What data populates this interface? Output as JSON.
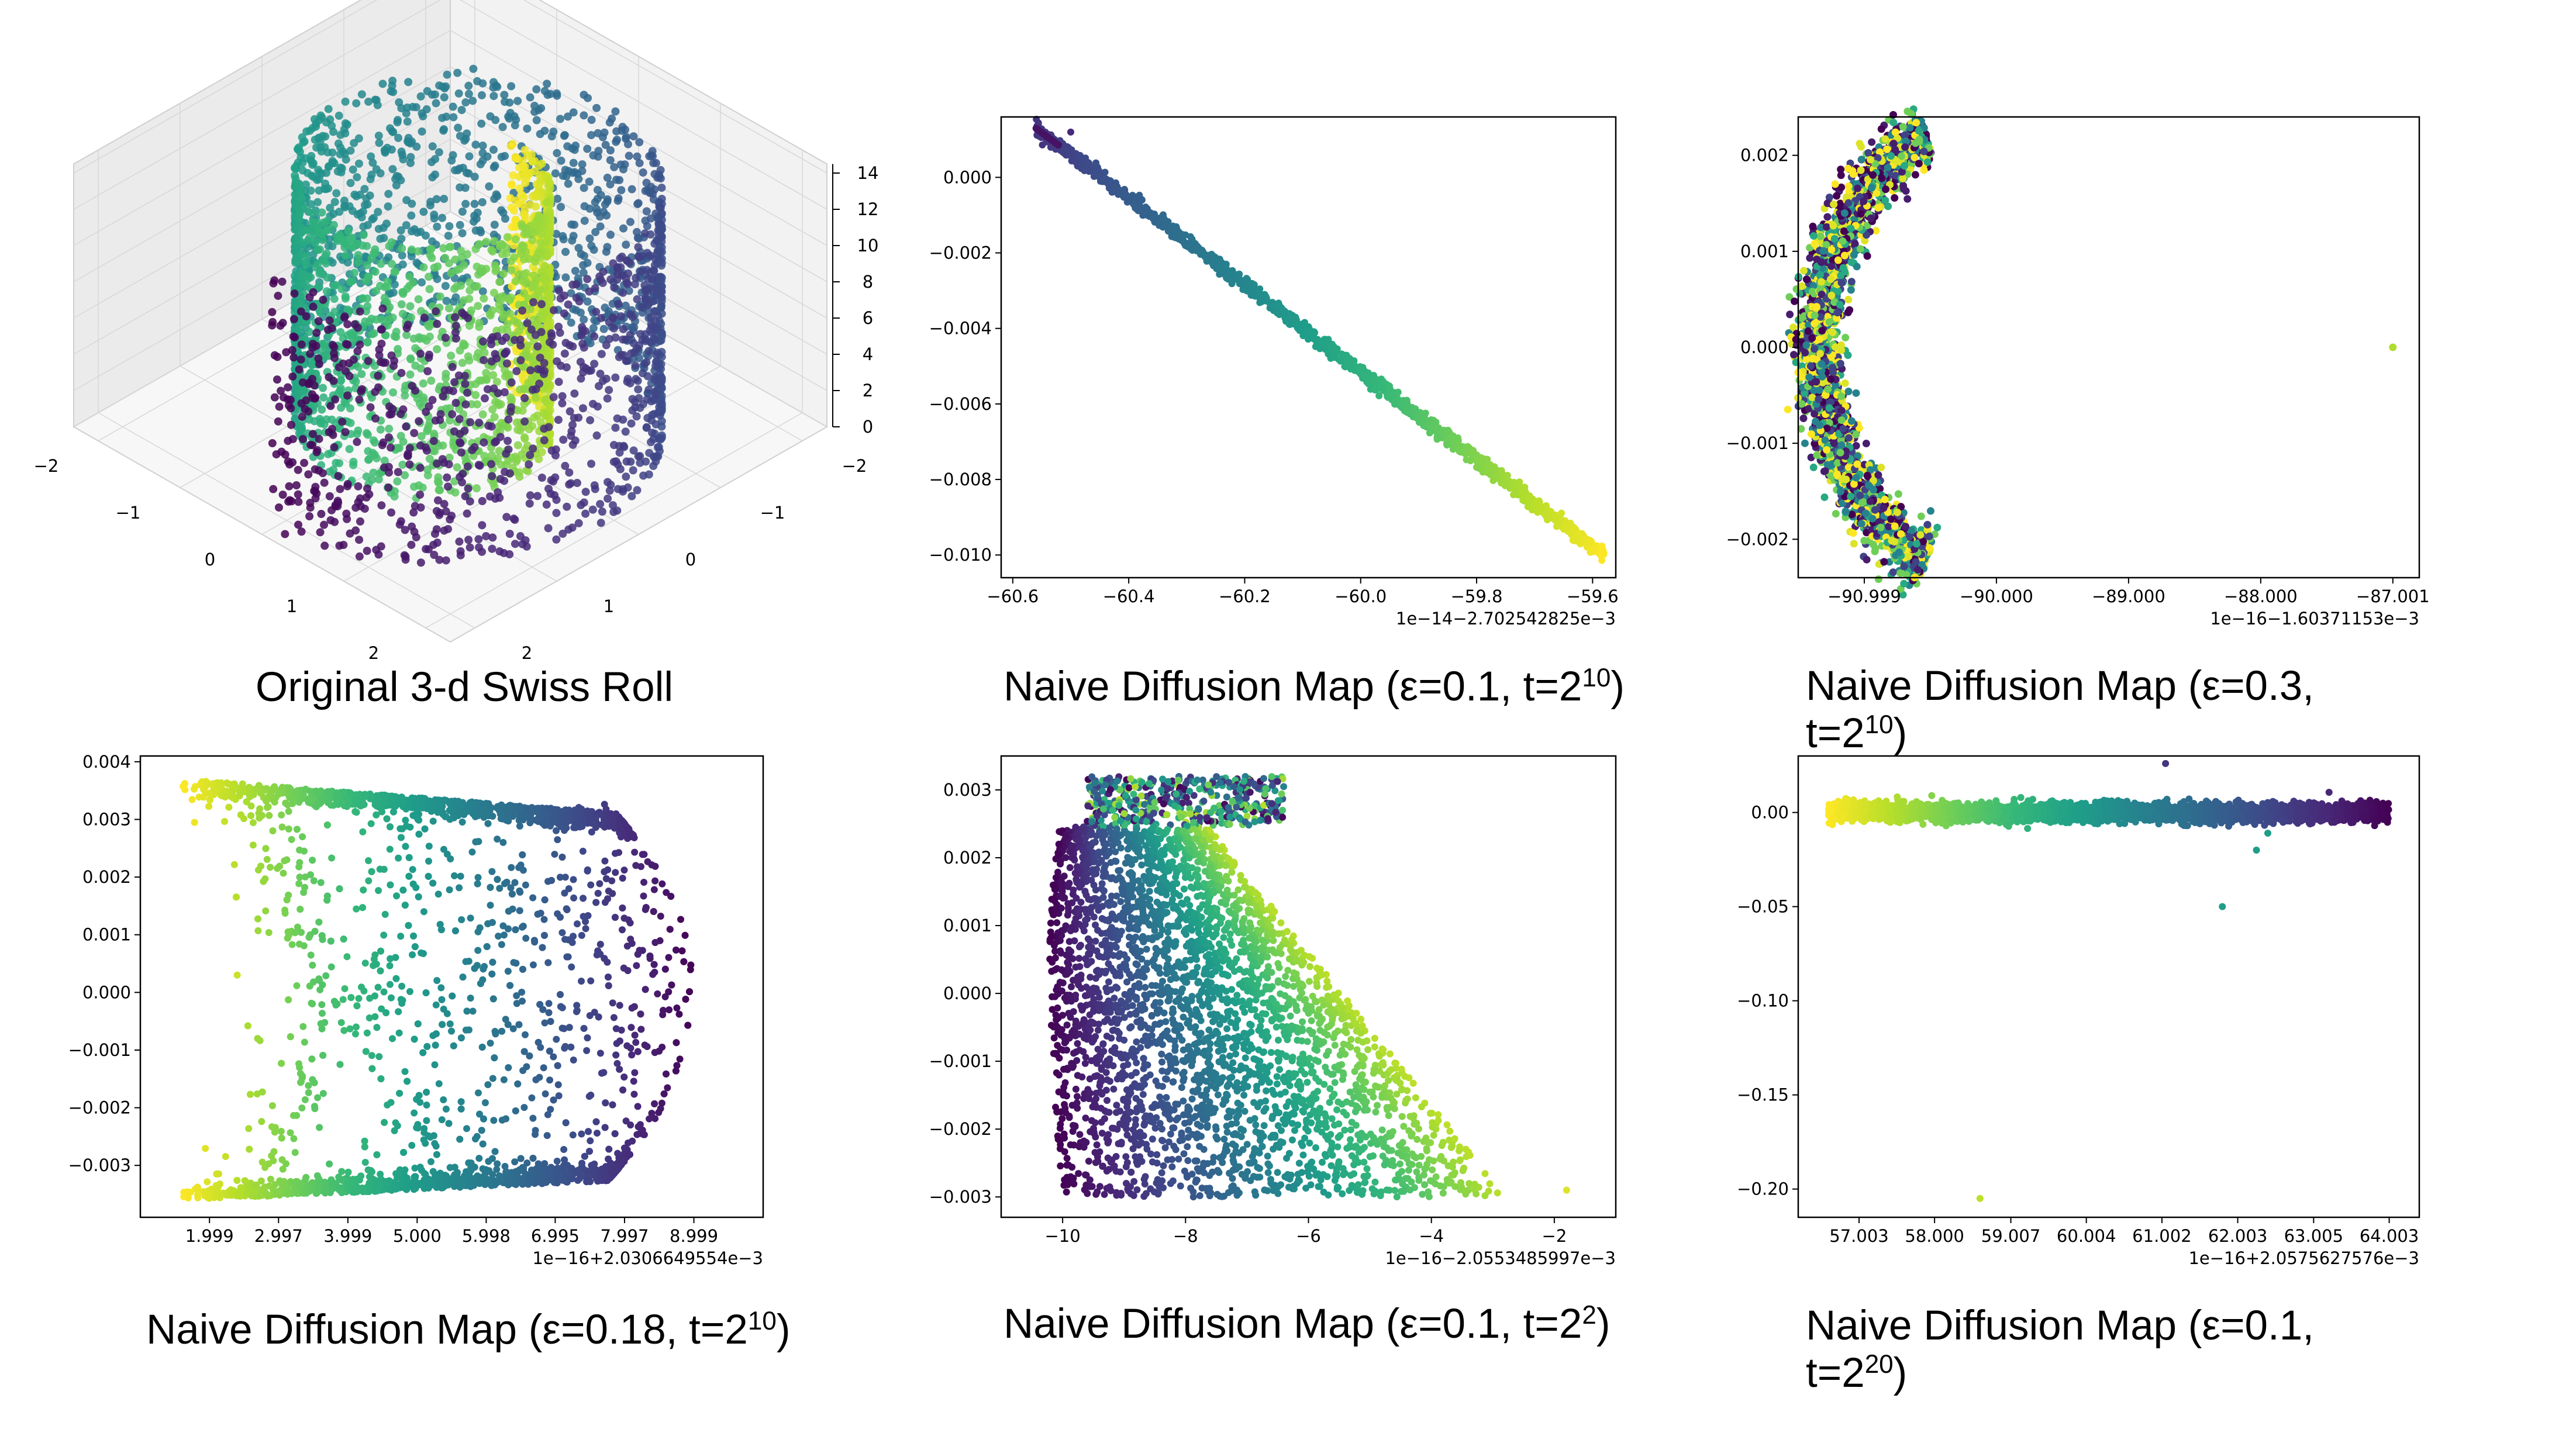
{
  "colors": {
    "viridis": [
      "#440154",
      "#482878",
      "#3e4a89",
      "#31688e",
      "#26828e",
      "#1f9e89",
      "#35b779",
      "#6ece58",
      "#b5de2b",
      "#fde725"
    ]
  },
  "chart_data": [
    {
      "id": "swiss3d",
      "type": "scatter3d",
      "caption": "Original 3-d Swiss Roll",
      "x_ticks": [
        "2",
        "1",
        "0",
        "−1",
        "−2"
      ],
      "y_ticks": [
        "−2",
        "−1",
        "0",
        "1",
        "2"
      ],
      "z_ticks": [
        "0",
        "2",
        "4",
        "6",
        "8",
        "10",
        "12",
        "14"
      ],
      "zlim": [
        0,
        14
      ],
      "grid": true
    },
    {
      "id": "p1",
      "type": "scatter",
      "caption_main": "Naive Diffusion Map (ε=0.1, t=2",
      "caption_exp": "10",
      "caption_end": ")",
      "xlim": [
        -60.62,
        -59.56
      ],
      "ylim": [
        -0.0106,
        0.0016
      ],
      "xticks": [
        -60.6,
        -60.4,
        -60.2,
        -60.0,
        -59.8,
        -59.6
      ],
      "xtick_labels": [
        "−60.6",
        "−60.4",
        "−60.2",
        "−60.0",
        "−59.8",
        "−59.6"
      ],
      "yticks": [
        0.0,
        -0.002,
        -0.004,
        -0.006,
        -0.008,
        -0.01
      ],
      "ytick_labels": [
        "0.000",
        "−0.002",
        "−0.004",
        "−0.006",
        "−0.008",
        "−0.010"
      ],
      "offset_text": "1e−14−2.702542825e−3",
      "shape": "line",
      "from": [
        -60.56,
        0.0013
      ],
      "to": [
        -59.58,
        -0.01
      ],
      "outlier": [
        -60.5,
        0.0012
      ]
    },
    {
      "id": "p2",
      "type": "scatter",
      "caption_main": "Naive Diffusion Map (ε=0.3,",
      "caption_line2": "t=2",
      "caption_exp": "10",
      "caption_end": ")",
      "xlim": [
        -91.5,
        -86.8
      ],
      "ylim": [
        -0.0024,
        0.0024
      ],
      "xticks": [
        -91.0,
        -90.0,
        -89.0,
        -88.0,
        -87.0
      ],
      "xtick_labels": [
        "−90.999",
        "−90.000",
        "−89.000",
        "−88.000",
        "−87.001"
      ],
      "yticks": [
        0.002,
        0.001,
        0.0,
        -0.001,
        -0.002
      ],
      "ytick_labels": [
        "0.002",
        "0.001",
        "0.000",
        "−0.001",
        "−0.002"
      ],
      "offset_text": "1e−16−1.60371153e−3",
      "shape": "crescent",
      "outlier": [
        -87.0,
        0.0
      ]
    },
    {
      "id": "p3",
      "type": "scatter",
      "caption_main": "Naive Diffusion Map (ε=0.18, t=2",
      "caption_exp": "10",
      "caption_end": ")",
      "xlim": [
        1.0,
        10.0
      ],
      "ylim": [
        -0.0039,
        0.0041
      ],
      "xticks": [
        1.999,
        2.997,
        3.999,
        5.0,
        5.998,
        6.995,
        7.997,
        8.999
      ],
      "xtick_labels": [
        "1.999",
        "2.997",
        "3.999",
        "5.000",
        "5.998",
        "6.995",
        "7.997",
        "8.999"
      ],
      "yticks": [
        0.004,
        0.003,
        0.002,
        0.001,
        0.0,
        -0.001,
        -0.002,
        -0.003
      ],
      "ytick_labels": [
        "0.004",
        "0.003",
        "0.002",
        "0.001",
        "0.000",
        "−0.001",
        "−0.002",
        "−0.003"
      ],
      "offset_text": "1e−16+2.0306649554e−3",
      "shape": "horseshoe",
      "outlier": [
        2.4,
        0.0003
      ]
    },
    {
      "id": "p4",
      "type": "scatter",
      "caption_main": "Naive Diffusion Map (ε=0.1, t=2",
      "caption_exp": "2",
      "caption_end": ")",
      "xlim": [
        -11.0,
        -1.0
      ],
      "ylim": [
        -0.0033,
        0.0035
      ],
      "xticks": [
        -10,
        -8,
        -6,
        -4,
        -2
      ],
      "xtick_labels": [
        "−10",
        "−8",
        "−6",
        "−4",
        "−2"
      ],
      "yticks": [
        0.003,
        0.002,
        0.001,
        0.0,
        -0.001,
        -0.002,
        -0.003
      ],
      "ytick_labels": [
        "0.003",
        "0.002",
        "0.001",
        "0.000",
        "−0.001",
        "−0.002",
        "−0.003"
      ],
      "offset_text": "1e−16−2.0553485997e−3",
      "shape": "sheet",
      "outlier": [
        -1.8,
        -0.0029
      ]
    },
    {
      "id": "p5",
      "type": "scatter",
      "caption_main": "Naive Diffusion Map (ε=0.1,",
      "caption_line2": "t=2",
      "caption_exp": "20",
      "caption_end": ")",
      "xlim": [
        56.2,
        64.4
      ],
      "ylim": [
        -0.215,
        0.03
      ],
      "xticks": [
        57.003,
        58.0,
        59.007,
        60.004,
        61.002,
        62.003,
        63.005,
        64.003
      ],
      "xtick_labels": [
        "57.003",
        "58.000",
        "59.007",
        "60.004",
        "61.002",
        "62.003",
        "63.005",
        "64.003"
      ],
      "yticks": [
        0.0,
        -0.05,
        -0.1,
        -0.15,
        -0.2
      ],
      "ytick_labels": [
        "0.00",
        "−0.05",
        "−0.10",
        "−0.15",
        "−0.20"
      ],
      "offset_text": "1e−16+2.0575627576e−3",
      "shape": "band",
      "outliers": [
        [
          61.05,
          0.026
        ],
        [
          61.8,
          -0.05
        ],
        [
          62.25,
          -0.02
        ],
        [
          62.4,
          -0.011
        ],
        [
          58.6,
          -0.205
        ]
      ]
    }
  ]
}
